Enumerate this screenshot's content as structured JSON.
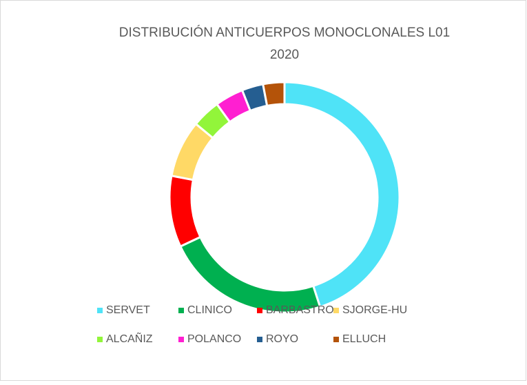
{
  "chart_data": {
    "type": "donut",
    "title": [
      "DISTRIBUCIÓN ANTICUERPOS MONOCLONALES L01",
      "2020"
    ],
    "categories": [
      "SERVET",
      "CLINICO",
      "BARBASTRO",
      "SJORGE-HU",
      "ALCAÑIZ",
      "POLANCO",
      "ROYO",
      "ELLUCH"
    ],
    "values": [
      45,
      23,
      10,
      8,
      4,
      4,
      3,
      3
    ],
    "colors": [
      "#4fe3f7",
      "#00b050",
      "#ff0000",
      "#ffd966",
      "#92f53a",
      "#ff1fd1",
      "#255e91",
      "#b45309"
    ],
    "legend": "bottom"
  }
}
